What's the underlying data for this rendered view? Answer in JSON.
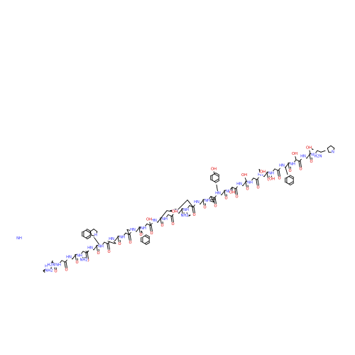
{
  "structure": {
    "name": "peptide-skeletal-formula",
    "colors": {
      "bond": "#000000",
      "nitrogen": "#2d2dff",
      "oxygen": "#e00000",
      "sulfur": "#b0a000"
    }
  },
  "atom_labels": {
    "oh": "OH",
    "o": "O",
    "nh": "NH",
    "hn": "HN",
    "h2n": "H2N",
    "nh2": "NH2",
    "nh_imine": "NH",
    "s": "S",
    "n": "N",
    "h": "H"
  }
}
